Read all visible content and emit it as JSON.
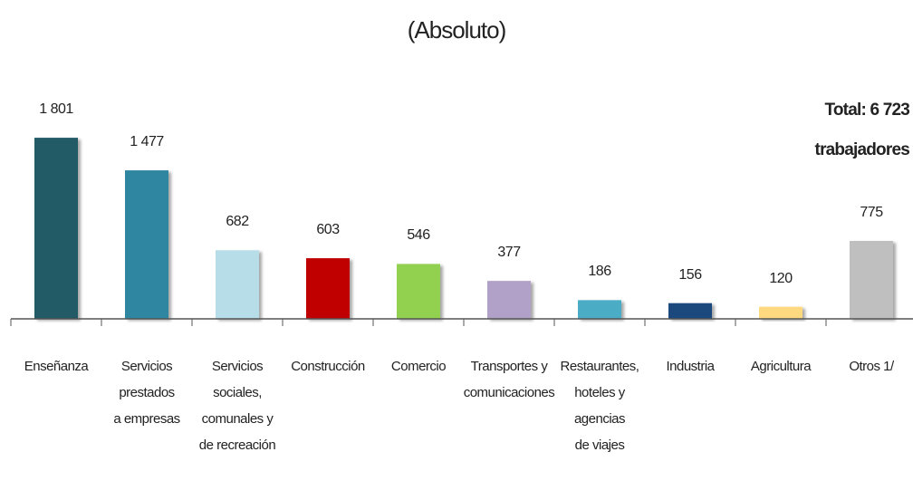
{
  "chart_data": {
    "type": "bar",
    "title": "(Absoluto)",
    "annotation": "Total: 6 723\ntrabajadores",
    "categories": [
      "Enseñanza",
      "Servicios\nprestados\na empresas",
      "Servicios\nsociales,\ncomunales y\nde recreación",
      "Construcción",
      "Comercio",
      "Transportes y\ncomunicaciones",
      "Restaurantes,\nhoteles y\nagencias\nde viajes",
      "Industria",
      "Agricultura",
      "Otros 1/"
    ],
    "values": [
      1801,
      1477,
      682,
      603,
      546,
      377,
      186,
      156,
      120,
      775
    ],
    "value_labels": [
      "1 801",
      "1 477",
      "682",
      "603",
      "546",
      "377",
      "186",
      "156",
      "120",
      "775"
    ],
    "colors": [
      "#245a66",
      "#2e86a0",
      "#b7dde8",
      "#c00000",
      "#92d050",
      "#b1a0c7",
      "#4bacc6",
      "#1f497d",
      "#ffd980",
      "#bfbfbf"
    ]
  }
}
